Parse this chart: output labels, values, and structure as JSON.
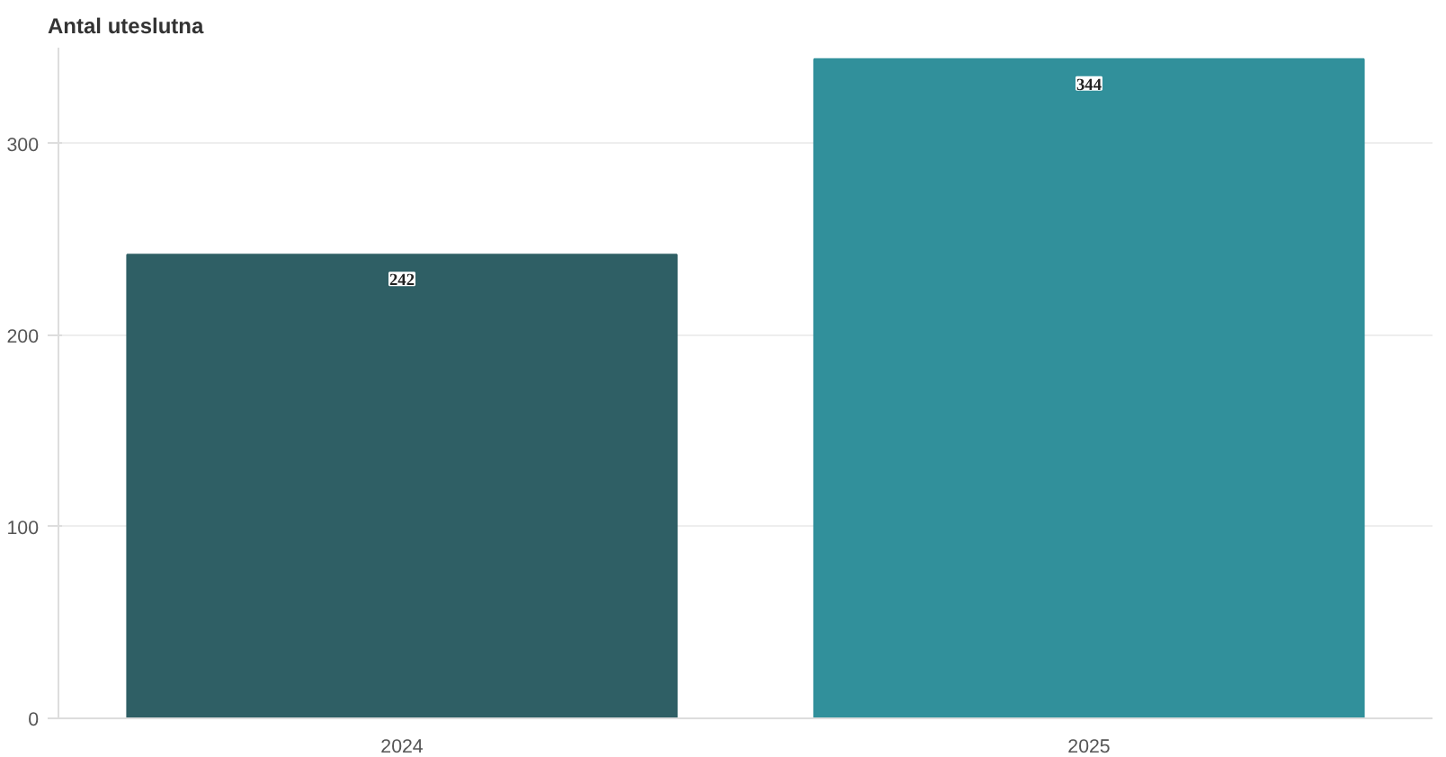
{
  "chart_data": {
    "type": "bar",
    "ylabel": "Antal uteslutna",
    "categories": [
      "2024",
      "2025"
    ],
    "values": [
      242,
      344
    ],
    "colors": [
      "#2f5f65",
      "#31909b"
    ],
    "ylim": [
      0,
      350
    ],
    "yticks": [
      0,
      100,
      200,
      300
    ],
    "grid": "y",
    "data_labels": true
  }
}
